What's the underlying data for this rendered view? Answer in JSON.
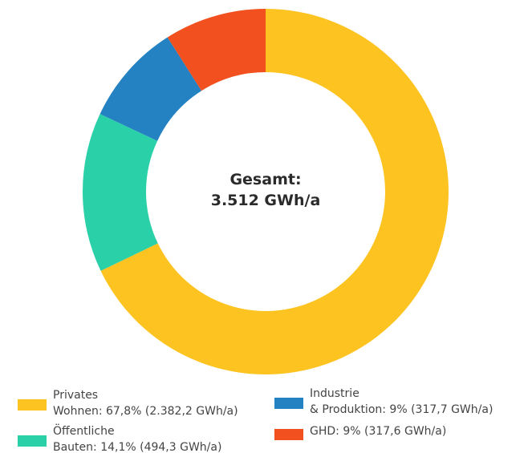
{
  "chart_data": {
    "type": "donut",
    "center_label": [
      "Gesamt:",
      "3.512 GWh/a"
    ],
    "categories": [
      "Privates\nWohnen: 67,8% (2.382,2 GWh/a)",
      "Öffentliche\nBauten: 14,1% (494,3 GWh/a)",
      "Industrie\n& Produktion: 9% (317,7 GWh/a)",
      "GHD: 9% (317,6 GWh/a)"
    ],
    "values": [
      67.8,
      14.1,
      9,
      9
    ],
    "colors": [
      "#fcc321",
      "#2ad1a8",
      "#2481c2",
      "#f2501e"
    ]
  }
}
